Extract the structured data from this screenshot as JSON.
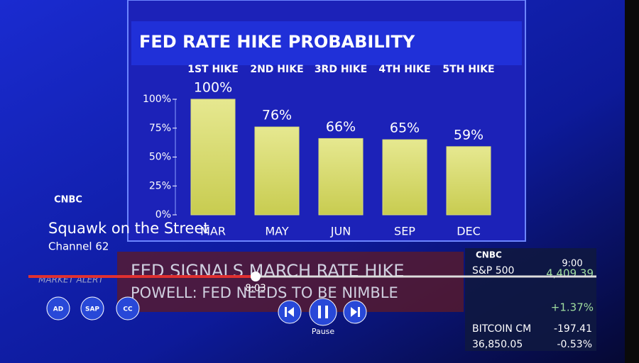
{
  "chart_data": {
    "type": "bar",
    "title": "FED RATE HIKE PROBABILITY",
    "hike_labels": [
      "1ST HIKE",
      "2ND HIKE",
      "3RD HIKE",
      "4TH HIKE",
      "5TH HIKE"
    ],
    "categories": [
      "MAR",
      "MAY",
      "JUN",
      "SEP",
      "DEC"
    ],
    "values": [
      100,
      76,
      66,
      65,
      59
    ],
    "value_labels": [
      "100%",
      "76%",
      "66%",
      "65%",
      "59%"
    ],
    "color": "#d8dc78",
    "ylim": [
      0,
      100
    ],
    "yticks": [
      {
        "value": 0,
        "label": "0%"
      },
      {
        "value": 25,
        "label": "25%"
      },
      {
        "value": 50,
        "label": "50%"
      },
      {
        "value": 75,
        "label": "75%"
      },
      {
        "value": 100,
        "label": "100%"
      }
    ]
  },
  "show": {
    "network": "CNBC",
    "title": "Squawk on the Street",
    "channel": "Channel 62"
  },
  "ticker": {
    "alert": "MARKET ALERT",
    "headline": "FED SIGNALS MARCH RATE HIKE",
    "subline": "POWELL: FED NEEDS TO BE NIMBLE"
  },
  "markets": {
    "brand": "CNBC",
    "sp_name": "S&P 500",
    "sp_value": "4,409.39",
    "sp_change": "+1.37%",
    "btc_name": "BITCOIN CM",
    "btc_change": "-197.41",
    "btc_value": "36,850.05",
    "btc_pct": "-0.53%"
  },
  "player": {
    "elapsed": "8:03",
    "duration": "9:00",
    "pause_label": "Pause",
    "buttons": [
      "AD",
      "SAP",
      "CC"
    ]
  }
}
